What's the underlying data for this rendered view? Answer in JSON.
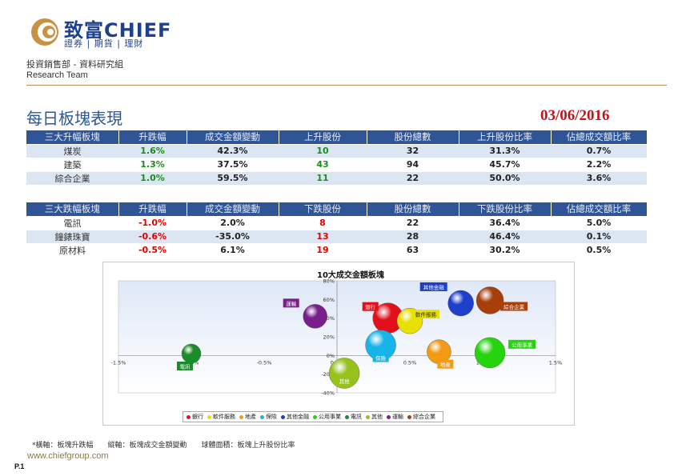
{
  "header": {
    "brand_name": "致富CHIEF",
    "brand_sub": "證券 | 期貨 | 理財",
    "department": "投資銷售部 - 資料研究組",
    "team": "Research Team"
  },
  "title": "每日板塊表現",
  "date": "03/06/2016",
  "top_table": {
    "headers": [
      "三大升幅板塊",
      "升跌幅",
      "成交金額變動",
      "上升股份",
      "股份總數",
      "上升股份比率",
      "佔總成交額比率"
    ],
    "rows": [
      {
        "name": "煤炭",
        "change": "1.6%",
        "turnover": "42.3%",
        "count": "10",
        "total": "32",
        "ratio": "31.3%",
        "share": "0.7%"
      },
      {
        "name": "建築",
        "change": "1.3%",
        "turnover": "37.5%",
        "count": "43",
        "total": "94",
        "ratio": "45.7%",
        "share": "2.2%"
      },
      {
        "name": "綜合企業",
        "change": "1.0%",
        "turnover": "59.5%",
        "count": "11",
        "total": "22",
        "ratio": "50.0%",
        "share": "3.6%"
      }
    ]
  },
  "bottom_table": {
    "headers": [
      "三大跌幅板塊",
      "升跌幅",
      "成交金額變動",
      "下跌股份",
      "股份總數",
      "下跌股份比率",
      "佔總成交額比率"
    ],
    "rows": [
      {
        "name": "電訊",
        "change": "-1.0%",
        "turnover": "2.0%",
        "count": "8",
        "total": "22",
        "ratio": "36.4%",
        "share": "5.0%"
      },
      {
        "name": "鐘錶珠寶",
        "change": "-0.6%",
        "turnover": "-35.0%",
        "count": "13",
        "total": "28",
        "ratio": "46.4%",
        "share": "0.1%"
      },
      {
        "name": "原材料",
        "change": "-0.5%",
        "turnover": "6.1%",
        "count": "19",
        "total": "63",
        "ratio": "30.2%",
        "share": "0.5%"
      }
    ]
  },
  "chart_data": {
    "type": "scatter",
    "title": "10大成交金額板塊",
    "xlabel": "板塊升跌幅",
    "ylabel": "板塊成交金額變動",
    "xlim": [
      -1.5,
      1.5
    ],
    "ylim": [
      -40,
      80
    ],
    "x_ticks": [
      "-1.5%",
      "-1.0%",
      "-0.5%",
      "0.0%",
      "0.5%",
      "1.0%",
      "1.5%"
    ],
    "y_ticks": [
      "-40%",
      "-20%",
      "0%",
      "20%",
      "40%",
      "60%",
      "80%"
    ],
    "series": [
      {
        "name": "銀行",
        "x": 0.35,
        "y": 40,
        "r": 19,
        "color": "#e3101b"
      },
      {
        "name": "軟件服務",
        "x": 0.5,
        "y": 37,
        "r": 16,
        "color": "#e8e000"
      },
      {
        "name": "地產",
        "x": 0.7,
        "y": 4,
        "r": 15,
        "color": "#f39a15"
      },
      {
        "name": "保險",
        "x": 0.3,
        "y": 11,
        "r": 19,
        "color": "#16b4e8"
      },
      {
        "name": "其他金融",
        "x": 0.85,
        "y": 56,
        "r": 16,
        "color": "#1d3fc9"
      },
      {
        "name": "公用事業",
        "x": 1.05,
        "y": 3,
        "r": 19,
        "color": "#25d40c"
      },
      {
        "name": "電訊",
        "x": -1.0,
        "y": 2,
        "r": 12,
        "color": "#1b8c2a"
      },
      {
        "name": "其他",
        "x": 0.05,
        "y": -19,
        "r": 19,
        "color": "#97c21c"
      },
      {
        "name": "運輸",
        "x": -0.15,
        "y": 42,
        "r": 15,
        "color": "#7a1e8c"
      },
      {
        "name": "綜合企業",
        "x": 1.05,
        "y": 59,
        "r": 17,
        "color": "#a83e0a"
      }
    ]
  },
  "footnote": "*橫軸：板塊升跌幅　　縱軸：板塊成交金額變動　　球體面積：板塊上升股份比率",
  "website": "www.chiefgroup.com",
  "page_number": "P.1"
}
